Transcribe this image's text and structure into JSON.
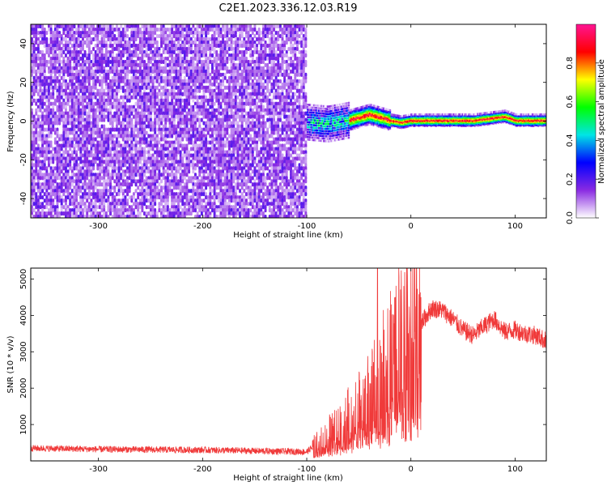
{
  "title": "C2E1.2023.336.12.03.R19",
  "chart_data": [
    {
      "type": "heatmap",
      "xlabel": "Height of straight line (km)",
      "ylabel": "Frequency (Hz)",
      "xlim": [
        -365,
        130
      ],
      "ylim": [
        -50,
        50
      ],
      "xticks": [
        -300,
        -200,
        -100,
        0,
        100
      ],
      "yticks": [
        -40,
        -20,
        0,
        20,
        40
      ],
      "noise_region_x": [
        -365,
        -100
      ],
      "signal_ridge": [
        {
          "x": -100,
          "y": 0
        },
        {
          "x": -80,
          "y": -1
        },
        {
          "x": -60,
          "y": 1
        },
        {
          "x": -40,
          "y": 4
        },
        {
          "x": -20,
          "y": 1
        },
        {
          "x": -10,
          "y": 0
        },
        {
          "x": 0,
          "y": 1
        },
        {
          "x": 20,
          "y": 1
        },
        {
          "x": 60,
          "y": 1
        },
        {
          "x": 90,
          "y": 3
        },
        {
          "x": 100,
          "y": 1
        },
        {
          "x": 130,
          "y": 1
        }
      ],
      "colorbar": {
        "label": "Normalized spectral amplitude",
        "range": [
          0.0,
          1.0
        ],
        "ticks": [
          "0.0",
          "0.2",
          "0.4",
          "0.6",
          "0.8"
        ],
        "colors": [
          "#ffffff",
          "#8a2be2",
          "#0000ff",
          "#00e5e5",
          "#00ff00",
          "#ffff00",
          "#ff0000",
          "#ff1493"
        ]
      },
      "grid": false
    },
    {
      "type": "line",
      "xlabel": "Height of straight line (km)",
      "ylabel": "SNR (10 * v/v)",
      "xlim": [
        -365,
        130
      ],
      "ylim": [
        0,
        5300
      ],
      "xticks": [
        -300,
        -200,
        -100,
        0,
        100
      ],
      "yticks": [
        1000,
        2000,
        3000,
        4000,
        5000
      ],
      "color": "#f03a3a",
      "series_envelope": {
        "x": [
          -365,
          -300,
          -200,
          -100,
          -85,
          -70,
          -55,
          -40,
          -32,
          -20,
          -10,
          0,
          10,
          20,
          30,
          40,
          50,
          60,
          70,
          80,
          90,
          100,
          110,
          120,
          130
        ],
        "y": [
          350,
          320,
          300,
          250,
          600,
          900,
          1300,
          1700,
          2100,
          2700,
          3200,
          3500,
          3800,
          4200,
          4150,
          3900,
          3600,
          3450,
          3700,
          3900,
          3550,
          3600,
          3500,
          3450,
          3300
        ]
      },
      "spike": {
        "x": -32,
        "y": 5300
      },
      "grid": false
    }
  ]
}
